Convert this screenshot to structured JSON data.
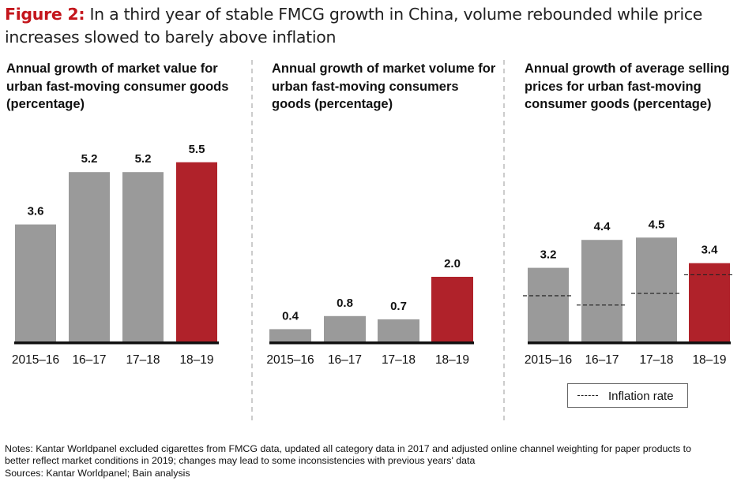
{
  "figure": {
    "label": "Figure 2:",
    "title": "In a third year of stable FMCG growth in China, volume rebounded while price increases slowed to barely above inflation"
  },
  "colors": {
    "bar_gray": "#9a9a9a",
    "bar_red": "#b0222a",
    "figure_label_red": "#c4161c"
  },
  "chart_data": [
    {
      "type": "bar",
      "title": "Annual growth of market value for urban fast-moving consumer goods (percentage)",
      "categories": [
        "2015–16",
        "16–17",
        "17–18",
        "18–19"
      ],
      "values": [
        3.6,
        5.2,
        5.2,
        5.5
      ],
      "value_labels": [
        "3.6",
        "5.2",
        "5.2",
        "5.5"
      ],
      "highlight_index": 3,
      "ylim": [
        0,
        6.5
      ]
    },
    {
      "type": "bar",
      "title": "Annual growth of market volume for urban fast-moving consumers goods (percentage)",
      "categories": [
        "2015–16",
        "16–17",
        "17–18",
        "18–19"
      ],
      "values": [
        0.4,
        0.8,
        0.7,
        2.0
      ],
      "value_labels": [
        "0.4",
        "0.8",
        "0.7",
        "2.0"
      ],
      "highlight_index": 3,
      "ylim": [
        0,
        6.5
      ]
    },
    {
      "type": "bar",
      "title": "Annual growth of average selling prices for urban fast-moving consumer goods (percentage)",
      "categories": [
        "2015–16",
        "16–17",
        "17–18",
        "18–19"
      ],
      "values": [
        3.2,
        4.4,
        4.5,
        3.4
      ],
      "value_labels": [
        "3.2",
        "4.4",
        "4.5",
        "3.4"
      ],
      "highlight_index": 3,
      "ylim": [
        0,
        5.5
      ],
      "inflation_rate": [
        2.0,
        1.6,
        2.1,
        2.9
      ],
      "legend": {
        "position": "bottom",
        "entries": [
          "Inflation rate"
        ]
      }
    }
  ],
  "notes": {
    "line1": "Notes: Kantar Worldpanel excluded cigarettes from FMCG data, updated all category data in 2017 and adjusted online channel weighting for paper products to",
    "line2": "better reflect market conditions in 2019; changes may lead to some inconsistencies with previous years' data",
    "sources": "Sources: Kantar Worldpanel; Bain analysis"
  }
}
